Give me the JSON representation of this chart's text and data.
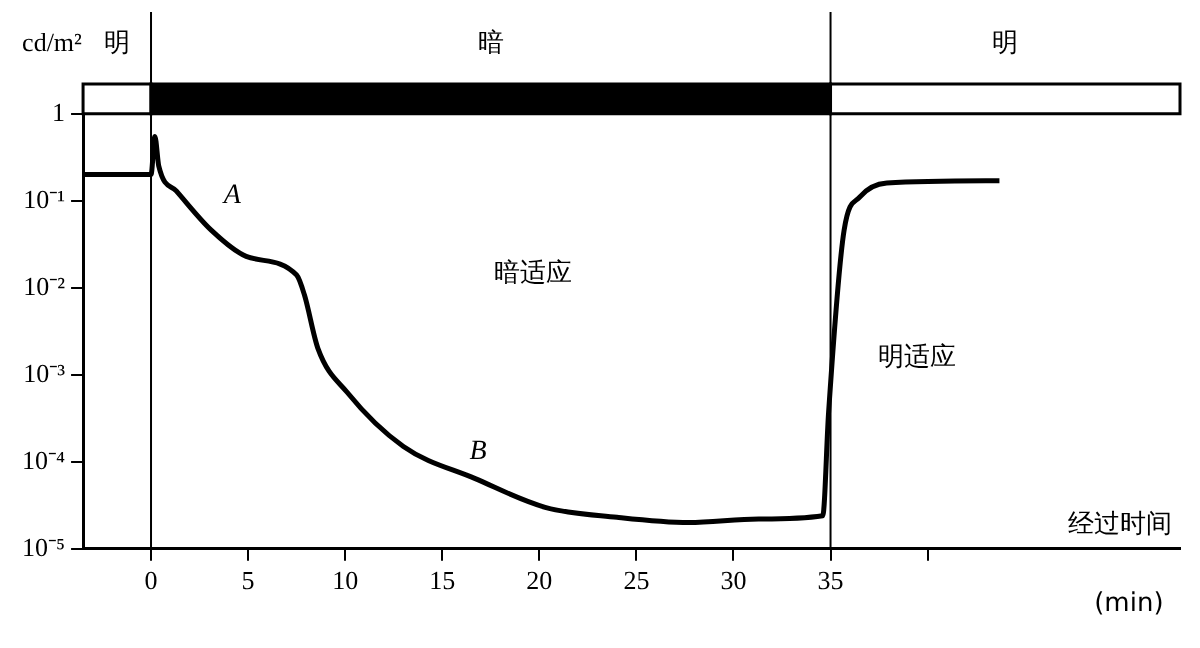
{
  "chart_data": {
    "type": "line",
    "ylabel": "cd/m²",
    "xlabel": "经过时间",
    "x": [
      -3.5,
      0,
      0.2,
      0.4,
      1.3,
      3.1,
      4.9,
      7.5,
      7.9,
      8.6,
      10.1,
      13,
      16.7,
      20.3,
      24,
      27.7,
      31.3,
      34.6,
      34.9,
      35.7,
      36.5,
      37.9,
      43.7
    ],
    "series": [
      {
        "color": "#000000",
        "values": [
          0.2,
          0.2,
          0.55,
          0.25,
          0.13,
          0.046,
          0.023,
          0.014,
          0.0083,
          0.002,
          0.00063,
          0.00015,
          6.4e-05,
          3e-05,
          2.3e-05,
          2e-05,
          2.2e-05,
          2.4e-05,
          0.00037,
          0.046,
          0.11,
          0.16,
          0.17
        ]
      }
    ],
    "log": "y",
    "grid": false,
    "marker": "none",
    "line_style": "solid",
    "xlim": [
      -3.5,
      53
    ],
    "xticks": [
      0,
      5,
      10,
      15,
      20,
      25,
      30,
      35,
      {
        "value": 40,
        "label": null
      }
    ],
    "ylim": [
      1e-05,
      2.2
    ],
    "yticks": [
      {
        "value": 1e-05,
        "label": "10⁻⁵"
      },
      {
        "value": 0.0001,
        "label": "10⁻⁴"
      },
      {
        "value": 0.001,
        "label": "10⁻³"
      },
      {
        "value": 0.01,
        "label": "10⁻²"
      },
      {
        "value": 0.1,
        "label": "10⁻¹"
      },
      1
    ],
    "bands": [
      {
        "axis": "x",
        "from": -3.5,
        "to": 0,
        "label": "明",
        "color": "#ffffff"
      },
      {
        "axis": "x",
        "from": 0,
        "to": 35,
        "label": "暗",
        "color": "#000000"
      },
      {
        "axis": "x",
        "from": 35,
        "to": 53,
        "label": "明",
        "color": "#ffffff"
      }
    ],
    "ref_lines": [
      {
        "axis": "x",
        "value": 0
      },
      {
        "axis": "x",
        "value": 35
      }
    ],
    "annotations": [
      "A",
      "B",
      "暗适应",
      "明适应",
      "(min)"
    ]
  }
}
